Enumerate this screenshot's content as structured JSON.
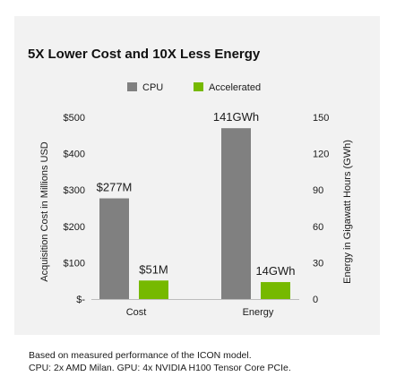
{
  "chart_data": {
    "type": "bar",
    "title": "5X Lower Cost and 10X Less Energy",
    "categories": [
      "Cost",
      "Energy"
    ],
    "legend": {
      "placement": "top-center"
    },
    "left_axis": {
      "label": "Acquisition Cost in Millions USD",
      "ylim": [
        0,
        500
      ],
      "ticks": [
        0,
        100,
        200,
        300,
        400,
        500
      ],
      "tick_labels": [
        "$-",
        "$100",
        "$200",
        "$300",
        "$400",
        "$500"
      ]
    },
    "right_axis": {
      "label": "Energy in Gigawatt Hours (GWh)",
      "ylim": [
        0,
        150
      ],
      "ticks": [
        0,
        30,
        60,
        90,
        120,
        150
      ],
      "tick_labels": [
        "0",
        "30",
        "60",
        "90",
        "120",
        "150"
      ]
    },
    "series": [
      {
        "name": "CPU",
        "color": "#808080",
        "values": [
          277,
          141
        ],
        "labels": [
          "$277M",
          "141GWh"
        ]
      },
      {
        "name": "Accelerated",
        "color": "#76b900",
        "values": [
          51,
          14
        ],
        "labels": [
          "$51M",
          "14GWh"
        ]
      }
    ],
    "value_axes": [
      "left",
      "right"
    ],
    "grid": false
  },
  "footnote": {
    "line1": "Based on measured performance of the ICON model.",
    "line2": "CPU: 2x AMD Milan. GPU: 4x NVIDIA H100 Tensor Core PCIe."
  }
}
